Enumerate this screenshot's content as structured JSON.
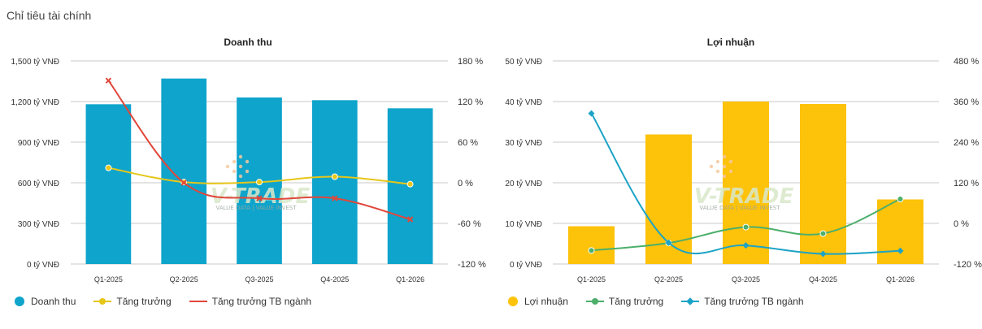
{
  "page": {
    "section_title": "Chỉ tiêu tài chính"
  },
  "watermark": {
    "brand": "V-TRADE",
    "tagline": "VALUE DATA | VALUE INVEST",
    "color": "#d9e8c9",
    "dots_color": "#f5c9a0"
  },
  "chart_data": [
    {
      "type": "bar",
      "title": "Doanh thu",
      "categories": [
        "Q1-2025",
        "Q2-2025",
        "Q3-2025",
        "Q4-2025",
        "Q1-2026"
      ],
      "ylim_left": [
        0,
        1500
      ],
      "yticks_left": [
        "0 tỷ VNĐ",
        "300 tỷ VNĐ",
        "600 tỷ VNĐ",
        "900 tỷ VNĐ",
        "1,200 tỷ VNĐ",
        "1,500 tỷ VNĐ"
      ],
      "ylim_right": [
        -120,
        180
      ],
      "yticks_right": [
        "-120 %",
        "-60 %",
        "0 %",
        "60 %",
        "120 %",
        "180 %"
      ],
      "series": [
        {
          "name": "Doanh thu",
          "kind": "bar",
          "axis": "left",
          "color": "#0fa4cc",
          "values": [
            1180,
            1370,
            1230,
            1210,
            1150
          ]
        },
        {
          "name": "Tăng trưởng",
          "kind": "line",
          "axis": "right",
          "color": "#e6c619",
          "marker": "circle",
          "values": [
            22,
            1,
            1,
            9,
            -2
          ]
        },
        {
          "name": "Tăng trưởng TB ngành",
          "kind": "line",
          "axis": "right",
          "color": "#e0473a",
          "marker": "x",
          "values": [
            151,
            0,
            -23,
            -23,
            -54
          ]
        }
      ]
    },
    {
      "type": "bar",
      "title": "Lợi nhuận",
      "categories": [
        "Q1-2025",
        "Q2-2025",
        "Q3-2025",
        "Q4-2025",
        "Q1-2026"
      ],
      "ylim_left": [
        0,
        50
      ],
      "yticks_left": [
        "0 tỷ VNĐ",
        "10 tỷ VNĐ",
        "20 tỷ VNĐ",
        "30 tỷ VNĐ",
        "40 tỷ VNĐ",
        "50 tỷ VNĐ"
      ],
      "ylim_right": [
        -120,
        480
      ],
      "yticks_right": [
        "-120 %",
        "0 %",
        "120 %",
        "240 %",
        "360 %",
        "480 %"
      ],
      "series": [
        {
          "name": "Lợi nhuận",
          "kind": "bar",
          "axis": "left",
          "color": "#fdc20a",
          "values": [
            9.3,
            31.9,
            40,
            39.4,
            15.9
          ]
        },
        {
          "name": "Tăng trưởng",
          "kind": "line",
          "axis": "right",
          "color": "#4caf6b",
          "marker": "circle",
          "values": [
            -80,
            -58,
            -11,
            -30,
            72
          ]
        },
        {
          "name": "Tăng trưởng TB ngành",
          "kind": "line",
          "axis": "right",
          "color": "#1ba3c6",
          "marker": "diamond",
          "values": [
            325,
            -57,
            -65,
            -90,
            -81
          ]
        }
      ]
    }
  ]
}
